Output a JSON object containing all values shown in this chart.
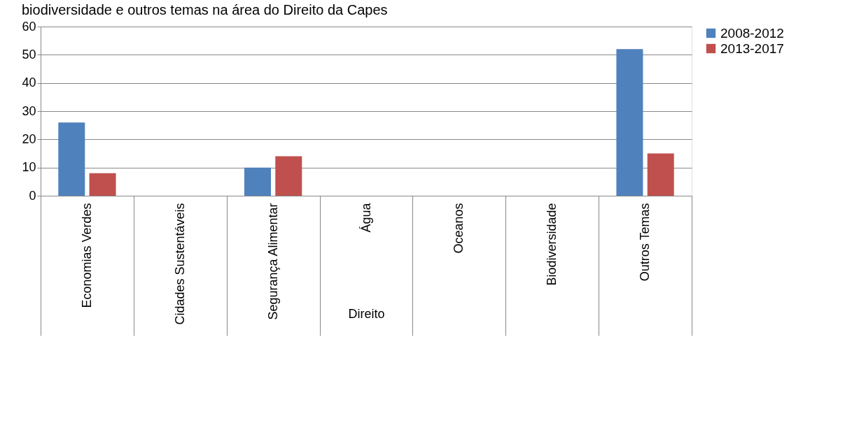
{
  "chart_data": {
    "type": "bar",
    "title": "biodiversidade e outros temas na área do Direito da Capes",
    "xlabel": "Direito",
    "categories": [
      "Economias Verdes",
      "Cidades Sustentáveis",
      "Segurança Alimentar",
      "Água",
      "Oceanos",
      "Biodiversidade",
      "Outros Temas"
    ],
    "series": [
      {
        "name": "2008-2012",
        "color": "#4f81bd",
        "values": [
          26,
          null,
          10,
          null,
          null,
          null,
          52
        ]
      },
      {
        "name": "2013-2017",
        "color": "#c0504d",
        "values": [
          8,
          null,
          14,
          null,
          null,
          null,
          15
        ]
      }
    ],
    "ylim": [
      0,
      60
    ],
    "yticks": [
      0,
      10,
      20,
      30,
      40,
      50,
      60
    ],
    "grid": "y",
    "legend": "right"
  }
}
